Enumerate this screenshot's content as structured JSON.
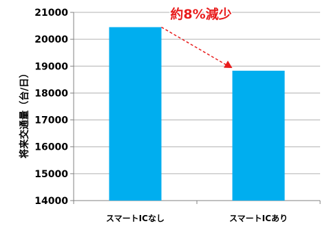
{
  "chart_data": {
    "type": "bar",
    "title": "",
    "xlabel": "",
    "ylabel": "将来交通量（台/日）",
    "categories": [
      "スマートICなし",
      "スマートICあり"
    ],
    "values": [
      20450,
      18830
    ],
    "ylim": [
      14000,
      21000
    ],
    "yticks": [
      14000,
      15000,
      16000,
      17000,
      18000,
      19000,
      20000,
      21000
    ],
    "grid": true,
    "legend": "none",
    "annotation": {
      "text": "約8%減少",
      "from_category": 0,
      "to_category": 1
    },
    "colors": {
      "bar": "#00aeef",
      "annotation": "#e81c1c",
      "grid": "#b0b0b0",
      "axis": "#808080"
    }
  }
}
